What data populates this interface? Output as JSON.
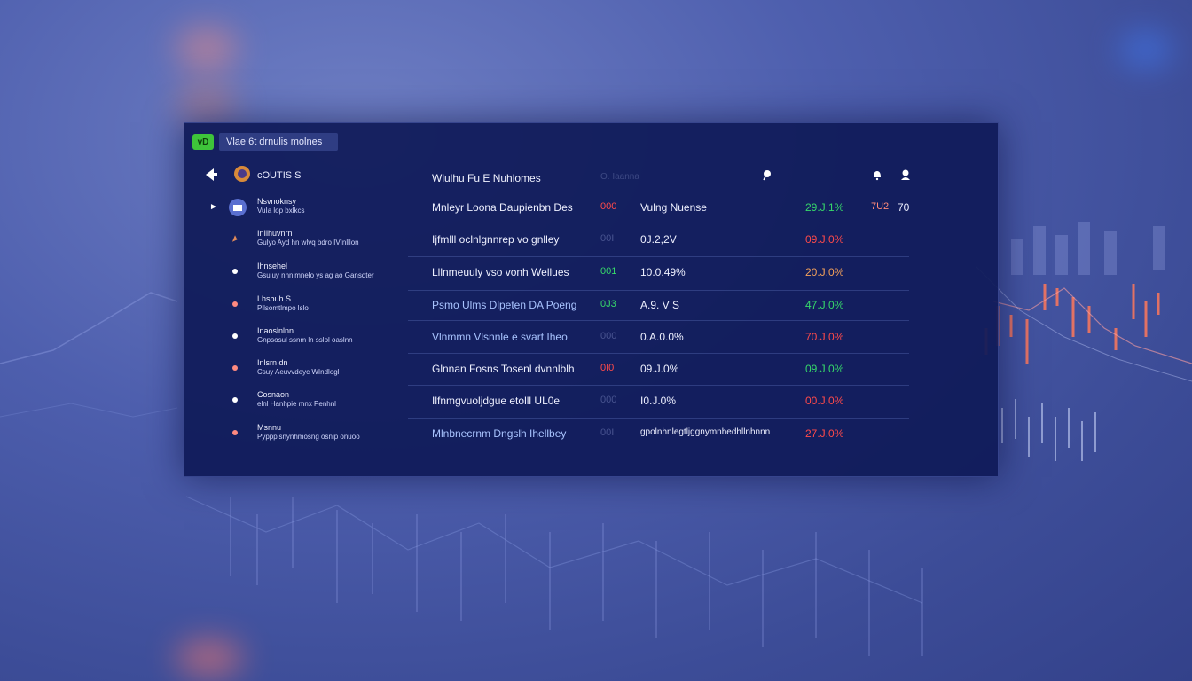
{
  "window": {
    "app_badge": "vD",
    "title": "Vlae 6t drnulis molnes"
  },
  "header": {
    "brand": "cOUTIS S",
    "col_description": "Wlulhu Fu E Nuhlomes",
    "col_dim": "O.  Iaanna"
  },
  "rows": [
    {
      "name1": "Nsvnoknsy",
      "name2": "VuIa  lop  bxlkcs",
      "desc": "Mnleyr  Loona  Daupienbn Des",
      "code": "000",
      "code_color": "red",
      "value": "Vulng Nuense",
      "pct": "29.J.1%",
      "pct_color": "green",
      "extra": "7U2",
      "extra2": "70"
    },
    {
      "name1": "InIlhuvnrn",
      "name2": "Gulyo Ayd hn wlvq bdro IVInlllon",
      "desc": "Ijfmlll oclnlgnnrep vo  gnlley",
      "code": "00I",
      "code_color": "dim",
      "value": "0J.2,2V",
      "pct": "09.J.0%",
      "pct_color": "red",
      "extra": "",
      "extra2": ""
    },
    {
      "name1": "Ihnsehel",
      "name2": "Gsuluy  nhnlmnelo ys ag ao Gansqter",
      "desc": "Lllnmeuuly vso vonh Wellues",
      "code": "001",
      "code_color": "green",
      "value": "10.0.49%",
      "pct": "20.J.0%",
      "pct_color": "orange",
      "extra": "",
      "extra2": ""
    },
    {
      "name1": "Lhsbuh S",
      "name2": "Pllsomtlmpo  lslo",
      "desc": "Psmo   Ulms  Dlpeten  DA Poeng",
      "code": "0J3",
      "code_color": "green",
      "value": "A.9. V S",
      "pct": "47.J.0%",
      "pct_color": "green",
      "extra": "",
      "extra2": ""
    },
    {
      "name1": "Inaoslnlnn",
      "name2": "Gnpsosul ssnm ln sslol oaslnn",
      "desc": "Vlnmmn   Vlsnnle  e svart  Iheo",
      "code": "000",
      "code_color": "dim",
      "value": "0.A.0.0%",
      "pct": "70.J.0%",
      "pct_color": "red",
      "extra": "",
      "extra2": ""
    },
    {
      "name1": "Inlsrn  dn",
      "name2": "Csuy  Aeuvvdeyc WIndlogl",
      "desc": "Glnnan  Fosns Tosenl dvnnlblh",
      "code": "0I0",
      "code_color": "red",
      "value": "09.J.0%",
      "pct": "09.J.0%",
      "pct_color": "green",
      "extra": "",
      "extra2": ""
    },
    {
      "name1": "Cosnaon",
      "name2": "elnl Hanhpie mnx Penhnl",
      "desc": "Ilfnmgvuoljdgue etolll UL0e",
      "code": "000",
      "code_color": "dim",
      "value": "I0.J.0%",
      "pct": "00.J.0%",
      "pct_color": "red",
      "extra": "",
      "extra2": ""
    },
    {
      "name1": "Msnnu",
      "name2": "Pyppplsnynhmosng osnip onuoo",
      "desc": "Mlnbnecrnm   Dngslh  Ihellbey",
      "code": "00I",
      "code_color": "dim",
      "value": "gpolnhnlegtljggnymnhedhllnhnnn",
      "pct": "27.J.0%",
      "pct_color": "red",
      "extra": "",
      "extra2": ""
    }
  ],
  "colors": {
    "panel": "#0f1a58",
    "green": "#36d86a",
    "red": "#ff4a4a",
    "accent": "#3ec43a"
  },
  "icons": [
    "back-arrow-icon",
    "coin-icon",
    "pin-icon",
    "bell-icon",
    "user-icon"
  ]
}
